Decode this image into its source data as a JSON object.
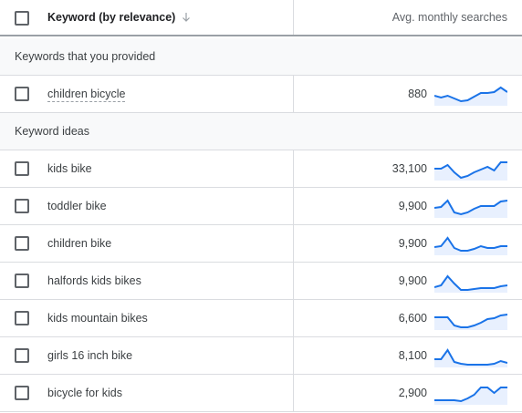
{
  "header": {
    "keyword_label": "Keyword (by relevance)",
    "avg_label": "Avg. monthly searches",
    "sort_icon": "arrow-down-icon"
  },
  "sections": {
    "provided_label": "Keywords that you provided",
    "ideas_label": "Keyword ideas"
  },
  "provided": [
    {
      "keyword": "children bicycle",
      "volume": "880",
      "trend": [
        0.45,
        0.35,
        0.45,
        0.3,
        0.15,
        0.2,
        0.4,
        0.6,
        0.6,
        0.65,
        0.9,
        0.65
      ]
    }
  ],
  "ideas": [
    {
      "keyword": "kids bike",
      "volume": "33,100",
      "trend": [
        0.55,
        0.55,
        0.75,
        0.35,
        0.05,
        0.15,
        0.35,
        0.5,
        0.65,
        0.45,
        0.9,
        0.9
      ]
    },
    {
      "keyword": "toddler bike",
      "volume": "9,900",
      "trend": [
        0.45,
        0.5,
        0.85,
        0.2,
        0.1,
        0.2,
        0.4,
        0.55,
        0.55,
        0.55,
        0.8,
        0.85
      ]
    },
    {
      "keyword": "children bike",
      "volume": "9,900",
      "trend": [
        0.35,
        0.4,
        0.85,
        0.3,
        0.15,
        0.15,
        0.25,
        0.4,
        0.3,
        0.3,
        0.4,
        0.4
      ]
    },
    {
      "keyword": "halfords kids bikes",
      "volume": "9,900",
      "trend": [
        0.2,
        0.3,
        0.8,
        0.4,
        0.05,
        0.05,
        0.1,
        0.15,
        0.15,
        0.15,
        0.25,
        0.3
      ]
    },
    {
      "keyword": "kids mountain bikes",
      "volume": "6,600",
      "trend": [
        0.6,
        0.6,
        0.6,
        0.15,
        0.05,
        0.05,
        0.15,
        0.3,
        0.5,
        0.55,
        0.7,
        0.75
      ]
    },
    {
      "keyword": "girls 16 inch bike",
      "volume": "8,100",
      "trend": [
        0.35,
        0.35,
        0.85,
        0.2,
        0.1,
        0.05,
        0.05,
        0.05,
        0.05,
        0.1,
        0.25,
        0.15
      ]
    },
    {
      "keyword": "bicycle for kids",
      "volume": "2,900",
      "trend": [
        0.15,
        0.15,
        0.15,
        0.15,
        0.1,
        0.25,
        0.45,
        0.85,
        0.85,
        0.55,
        0.85,
        0.85
      ]
    }
  ],
  "colors": {
    "sparkline": "#1a73e8",
    "sparkfill": "#e8f0fe"
  }
}
